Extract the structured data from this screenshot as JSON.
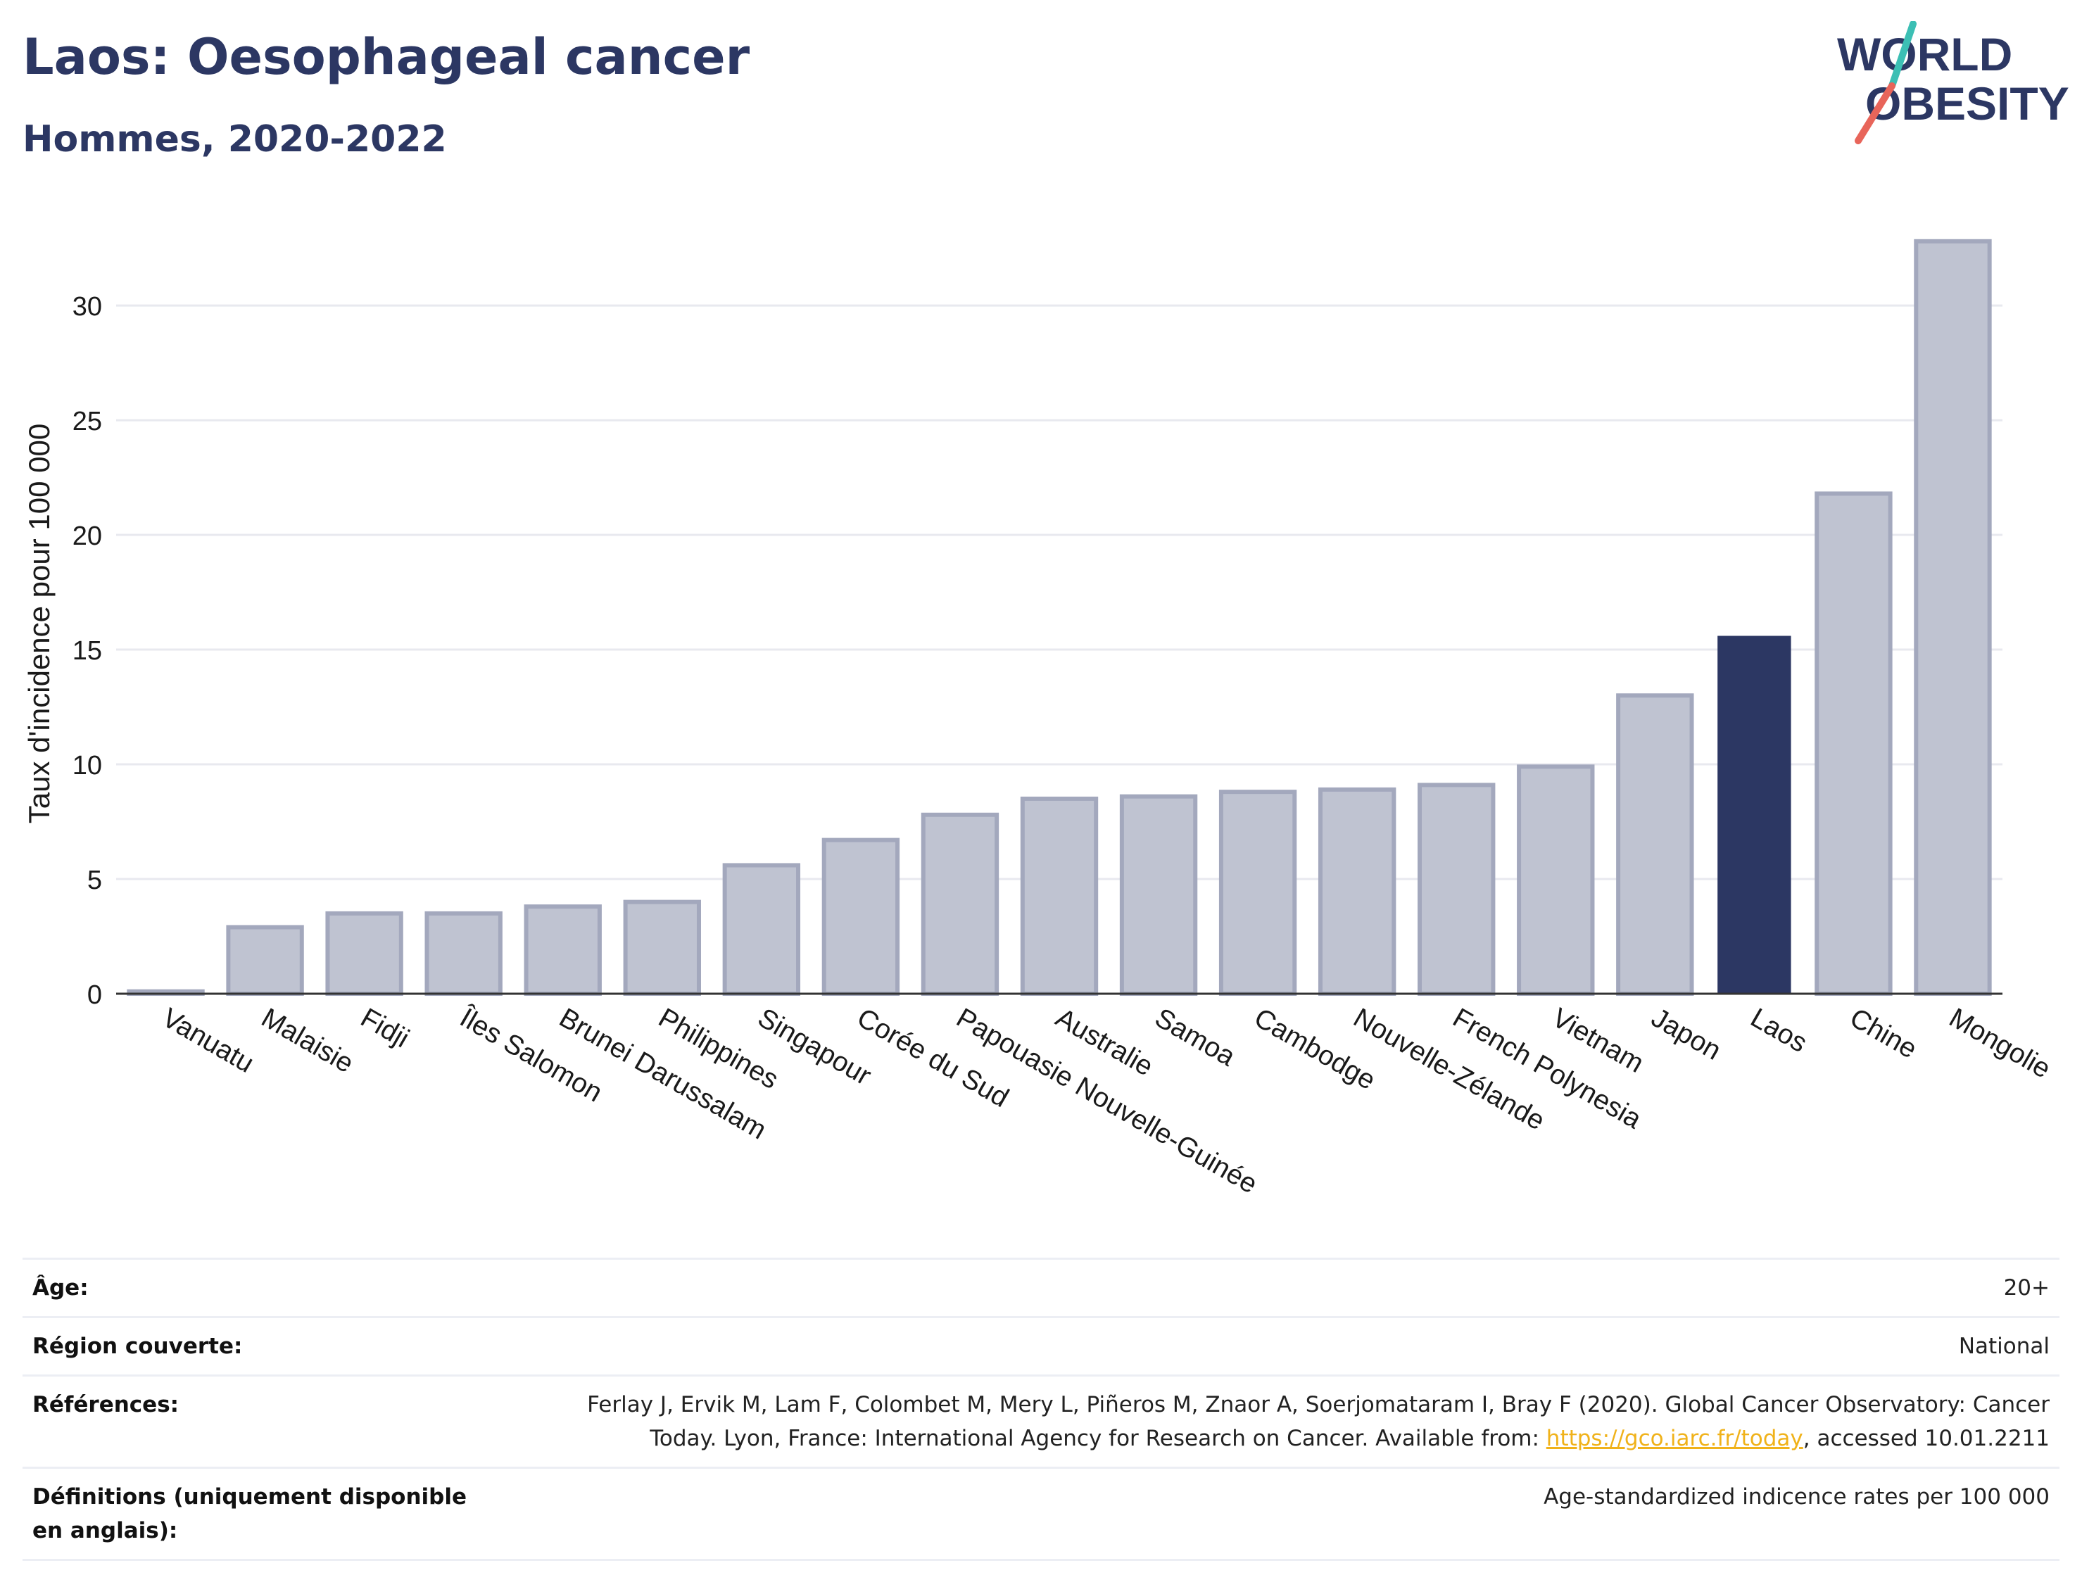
{
  "header": {
    "title": "Laos: Oesophageal cancer",
    "subtitle": "Hommes, 2020-2022"
  },
  "logo": {
    "line1": "WORLD",
    "line2": "OBESITY",
    "accent_teal": "#3cbfb4",
    "accent_red": "#e8655a"
  },
  "colors": {
    "bar": "#bfc3d1",
    "bar_stroke": "#a3a8bd",
    "highlight": "#2c3763",
    "grid": "#e8e9ef",
    "axis": "#333333"
  },
  "chart_data": {
    "type": "bar",
    "title": "Laos: Oesophageal cancer",
    "subtitle": "Hommes, 2020-2022",
    "xlabel": "",
    "ylabel": "Taux d'incidence pour 100 000",
    "ylim": [
      0,
      33.5
    ],
    "yticks": [
      0,
      5,
      10,
      15,
      20,
      25,
      30
    ],
    "grid": true,
    "highlight": "Laos",
    "categories": [
      "Vanuatu",
      "Malaisie",
      "Fidji",
      "Îles Salomon",
      "Brunei Darussalam",
      "Philippines",
      "Singapour",
      "Corée du Sud",
      "Papouasie Nouvelle-Guinée",
      "Australie",
      "Samoa",
      "Cambodge",
      "Nouvelle-Zélande",
      "French Polynesia",
      "Vietnam",
      "Japon",
      "Laos",
      "Chine",
      "Mongolie"
    ],
    "values": [
      0.1,
      2.9,
      3.5,
      3.5,
      3.8,
      4.0,
      5.6,
      6.7,
      7.8,
      8.5,
      8.6,
      8.8,
      8.9,
      9.1,
      9.9,
      13.0,
      15.6,
      21.8,
      32.8
    ]
  },
  "meta": {
    "age_label": "Âge:",
    "age_value": "20+",
    "region_label": "Région couverte:",
    "region_value": "National",
    "ref_label": "Références:",
    "ref_text_1": "Ferlay J, Ervik M, Lam F, Colombet M, Mery L, Piñeros M, Znaor A, Soerjomataram I, Bray F (2020). Global Cancer Observatory: Cancer",
    "ref_text_2": "Today. Lyon, France: International Agency for Research on Cancer. Available from: ",
    "ref_link": "https://gco.iarc.fr/today",
    "ref_text_3": ", accessed 10.01.2211",
    "def_label": "Définitions (uniquement disponible en anglais):",
    "def_value": "Age-standardized indicence rates per 100 000"
  }
}
